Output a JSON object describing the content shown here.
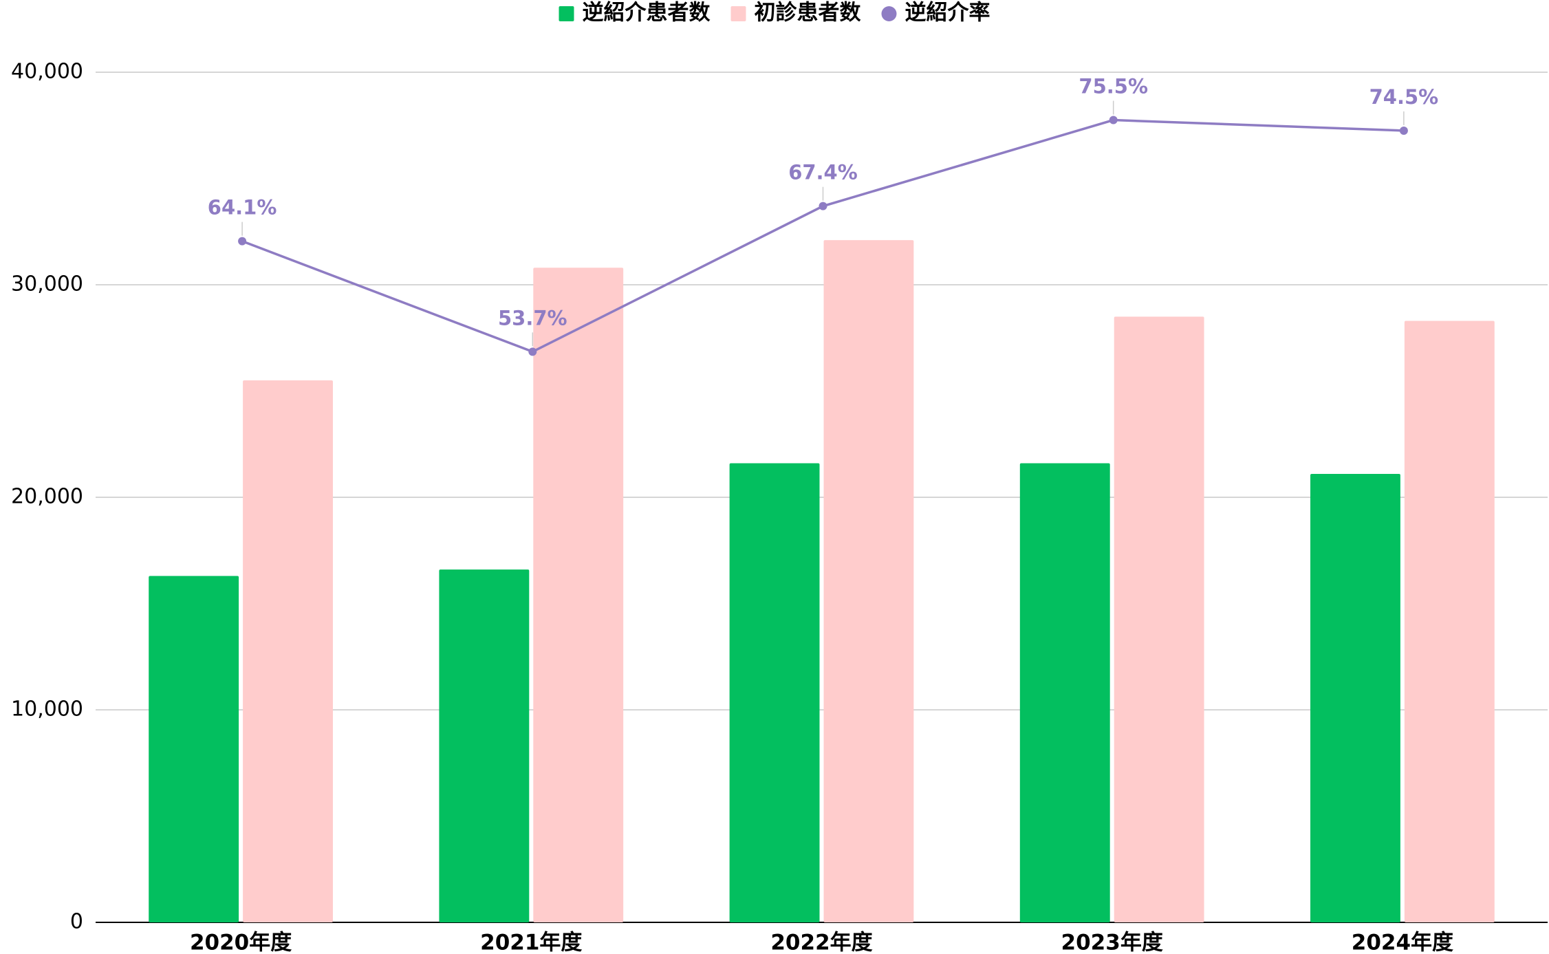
{
  "chart_data": {
    "type": "bar",
    "categories": [
      "2020年度",
      "2021年度",
      "2022年度",
      "2023年度",
      "2024年度"
    ],
    "series": [
      {
        "name": "逆紹介患者数",
        "type": "bar",
        "color": "#03bf5f",
        "values": [
          16300,
          16600,
          21600,
          21600,
          21100
        ]
      },
      {
        "name": "初診患者数",
        "type": "bar",
        "color": "#ffcccc",
        "values": [
          25500,
          30800,
          32100,
          28500,
          28300
        ]
      },
      {
        "name": "逆紹介率",
        "type": "line",
        "axis": "y2",
        "color": "#8e7cc3",
        "values": [
          64.1,
          53.7,
          67.4,
          75.5,
          74.5
        ],
        "value_labels": [
          "64.1%",
          "53.7%",
          "67.4%",
          "75.5%",
          "74.5%"
        ]
      }
    ],
    "ylim": [
      0,
      40000
    ],
    "yticks": [
      0,
      {
        "value": 10000,
        "label": "10,000"
      },
      {
        "value": 20000,
        "label": "20,000"
      },
      {
        "value": 30000,
        "label": "30,000"
      },
      {
        "value": 40000,
        "label": "40,000"
      }
    ],
    "y2lim": [
      0,
      80
    ],
    "grid": true,
    "legend": "top"
  }
}
